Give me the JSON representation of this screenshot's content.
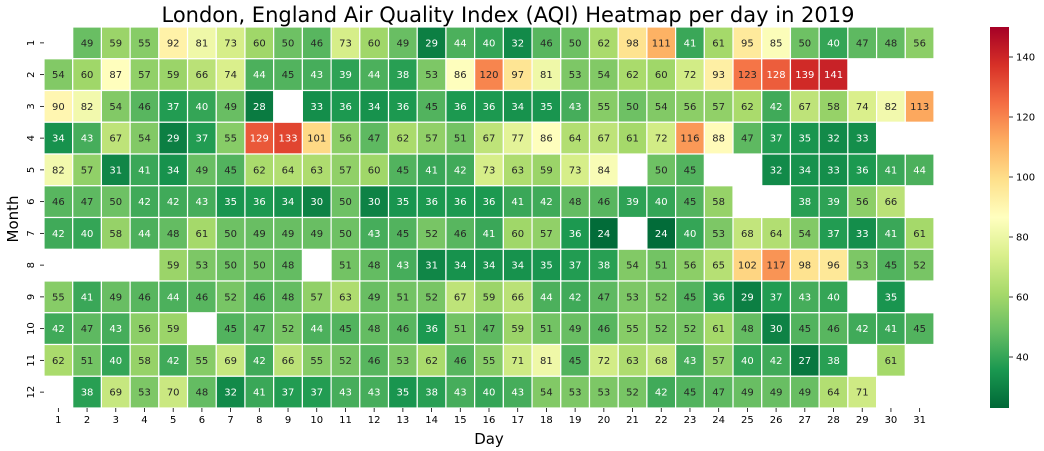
{
  "chart_data": {
    "type": "heatmap",
    "title": "London, England Air Quality Index (AQI) Heatmap per day in 2019",
    "xlabel": "Day",
    "ylabel": "Month",
    "x_categories": [
      "1",
      "2",
      "3",
      "4",
      "5",
      "6",
      "7",
      "8",
      "9",
      "10",
      "11",
      "12",
      "13",
      "14",
      "15",
      "16",
      "17",
      "18",
      "19",
      "20",
      "21",
      "22",
      "23",
      "24",
      "25",
      "26",
      "27",
      "28",
      "29",
      "30",
      "31"
    ],
    "y_categories": [
      "1",
      "2",
      "3",
      "4",
      "5",
      "6",
      "7",
      "8",
      "9",
      "10",
      "11",
      "12"
    ],
    "values": [
      [
        null,
        49,
        59,
        55,
        92,
        81,
        73,
        60,
        50,
        46,
        73,
        60,
        49,
        29,
        44,
        40,
        32,
        46,
        50,
        62,
        98,
        111,
        41,
        61,
        95,
        85,
        50,
        40,
        47,
        48,
        56
      ],
      [
        54,
        60,
        87,
        57,
        59,
        66,
        74,
        44,
        45,
        43,
        39,
        44,
        38,
        53,
        86,
        120,
        97,
        81,
        53,
        54,
        62,
        60,
        72,
        93,
        123,
        128,
        139,
        141,
        null,
        null,
        null
      ],
      [
        90,
        82,
        54,
        46,
        37,
        40,
        49,
        28,
        null,
        33,
        36,
        34,
        36,
        45,
        36,
        36,
        34,
        35,
        43,
        55,
        50,
        54,
        56,
        57,
        62,
        42,
        67,
        58,
        74,
        82,
        113
      ],
      [
        34,
        43,
        67,
        54,
        29,
        37,
        55,
        129,
        133,
        101,
        56,
        47,
        62,
        57,
        51,
        67,
        77,
        86,
        64,
        67,
        61,
        72,
        116,
        88,
        47,
        37,
        35,
        32,
        33,
        null,
        null
      ],
      [
        82,
        57,
        31,
        41,
        34,
        49,
        45,
        62,
        64,
        63,
        57,
        60,
        45,
        41,
        42,
        73,
        63,
        59,
        73,
        84,
        null,
        50,
        45,
        null,
        null,
        32,
        34,
        33,
        36,
        41,
        44
      ],
      [
        46,
        47,
        50,
        42,
        42,
        43,
        35,
        36,
        34,
        30,
        50,
        30,
        35,
        36,
        36,
        36,
        41,
        42,
        48,
        46,
        39,
        40,
        45,
        58,
        null,
        null,
        38,
        39,
        56,
        66,
        null
      ],
      [
        42,
        40,
        58,
        44,
        48,
        61,
        50,
        49,
        49,
        49,
        50,
        43,
        45,
        52,
        46,
        41,
        60,
        57,
        36,
        24,
        null,
        24,
        40,
        53,
        68,
        64,
        54,
        37,
        33,
        41,
        61
      ],
      [
        null,
        null,
        null,
        null,
        59,
        53,
        50,
        50,
        48,
        null,
        51,
        48,
        43,
        31,
        34,
        34,
        34,
        35,
        37,
        38,
        54,
        51,
        56,
        65,
        102,
        117,
        98,
        96,
        53,
        45,
        52
      ],
      [
        55,
        41,
        49,
        46,
        44,
        46,
        52,
        46,
        48,
        57,
        63,
        49,
        51,
        52,
        67,
        59,
        66,
        44,
        42,
        47,
        53,
        52,
        45,
        36,
        29,
        37,
        43,
        40,
        null,
        35,
        null
      ],
      [
        42,
        47,
        43,
        56,
        59,
        null,
        45,
        47,
        52,
        44,
        45,
        48,
        46,
        36,
        51,
        47,
        59,
        51,
        49,
        46,
        55,
        52,
        52,
        61,
        48,
        30,
        45,
        46,
        42,
        41,
        45
      ],
      [
        62,
        51,
        40,
        58,
        42,
        55,
        69,
        42,
        66,
        55,
        52,
        46,
        53,
        62,
        46,
        55,
        71,
        81,
        45,
        72,
        63,
        68,
        43,
        57,
        40,
        42,
        27,
        38,
        null,
        61,
        null
      ],
      [
        null,
        38,
        69,
        53,
        70,
        48,
        32,
        41,
        37,
        37,
        43,
        43,
        35,
        38,
        43,
        40,
        43,
        54,
        53,
        53,
        52,
        42,
        45,
        47,
        49,
        49,
        49,
        64,
        71,
        null,
        null
      ]
    ],
    "colormap": "RdYlGn_r",
    "vmin": 23,
    "vmax": 150,
    "colorbar_ticks": [
      40,
      60,
      80,
      100,
      120,
      140
    ],
    "grid": false,
    "legend": "colorbar-right"
  }
}
